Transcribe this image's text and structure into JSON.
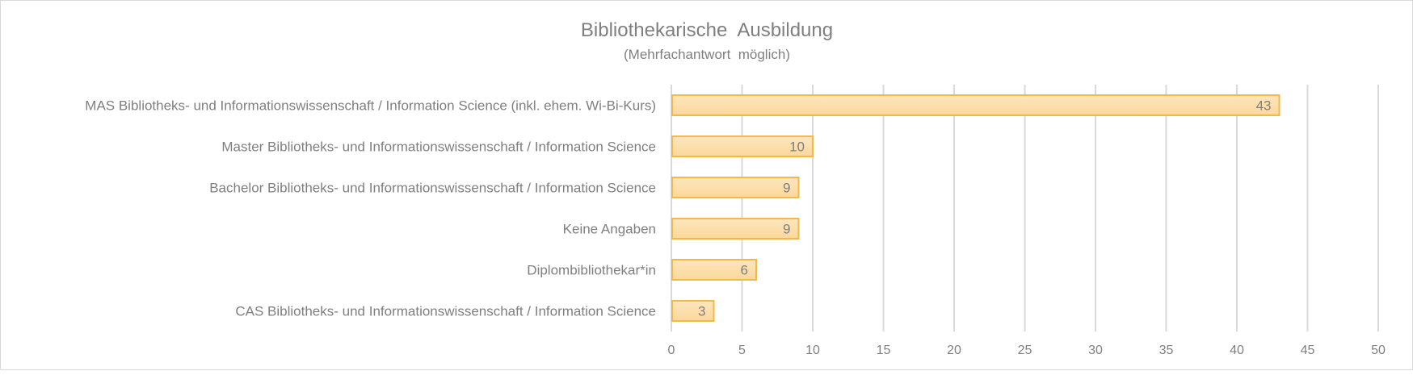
{
  "chart_data": {
    "type": "bar",
    "orientation": "horizontal",
    "title": "Bibliothekarische  Ausbildung",
    "subtitle": "(Mehrfachantwort  möglich)",
    "categories": [
      "MAS Bibliotheks- und Informationswissenschaft / Information Science (inkl. ehem. Wi-Bi-Kurs)",
      "Master Bibliotheks- und Informationswissenschaft / Information Science",
      "Bachelor Bibliotheks- und Informationswissenschaft / Information Science",
      "Keine Angaben",
      "Diplombibliothekar*in",
      "CAS Bibliotheks- und Informationswissenschaft / Information Science"
    ],
    "values": [
      43,
      10,
      9,
      9,
      6,
      3
    ],
    "xlim": [
      0,
      50
    ],
    "xticks": [
      "0",
      "5",
      "10",
      "15",
      "20",
      "25",
      "30",
      "35",
      "40",
      "45",
      "50"
    ],
    "grid": true,
    "data_labels": true,
    "colors": {
      "bar_fill_top": "#fde6bd",
      "bar_fill_bottom": "#fbd89a",
      "bar_border": "#f0b94a",
      "grid": "#d9d9d9",
      "text": "#7f7f7f"
    }
  }
}
